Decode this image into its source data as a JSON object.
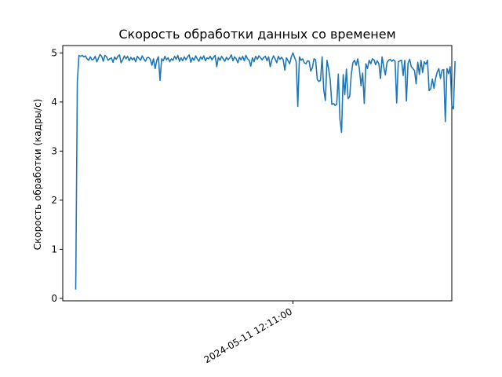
{
  "chart_data": {
    "type": "line",
    "title": "Скорость обработки данных со временем",
    "xlabel": "",
    "ylabel": "Скорость обработки (кадры/с)",
    "y_ticks": [
      "0",
      "1",
      "2",
      "3",
      "4",
      "5"
    ],
    "ylim": [
      -0.05,
      5.15
    ],
    "x_ticks": [
      {
        "label": "2024-05-11 12:11:00",
        "at_index": 134
      }
    ],
    "xlim_index": [
      -8,
      232
    ],
    "grid": false,
    "line_color": "#1f77b4",
    "series": [
      {
        "values": [
          0.18,
          4.42,
          4.95,
          4.93,
          4.95,
          4.92,
          4.94,
          4.88,
          4.85,
          4.92,
          4.86,
          4.87,
          4.93,
          4.82,
          4.89,
          4.97,
          4.93,
          4.83,
          4.95,
          4.92,
          4.85,
          4.88,
          4.9,
          4.81,
          4.92,
          4.87,
          4.93,
          4.96,
          4.8,
          4.86,
          4.94,
          4.88,
          4.93,
          4.84,
          4.91,
          4.86,
          4.9,
          4.82,
          4.93,
          4.89,
          4.85,
          4.94,
          4.88,
          4.83,
          4.9,
          4.91,
          4.87,
          4.75,
          4.88,
          4.68,
          4.85,
          4.92,
          4.44,
          4.88,
          4.84,
          4.93,
          4.86,
          4.9,
          4.82,
          4.88,
          4.85,
          4.93,
          4.87,
          4.95,
          4.83,
          4.9,
          4.84,
          4.92,
          4.86,
          4.92,
          4.96,
          4.81,
          4.9,
          4.85,
          4.94,
          4.88,
          4.83,
          4.92,
          4.87,
          4.94,
          4.84,
          4.9,
          4.88,
          4.93,
          4.86,
          4.91,
          4.95,
          4.72,
          4.91,
          4.85,
          4.93,
          4.88,
          4.83,
          4.91,
          4.86,
          4.9,
          4.96,
          4.84,
          4.92,
          4.88,
          4.8,
          4.91,
          4.86,
          4.93,
          4.84,
          4.95,
          4.88,
          4.85,
          4.73,
          4.9,
          4.82,
          4.93,
          4.87,
          4.94,
          4.9,
          4.86,
          4.91,
          4.93,
          4.84,
          4.92,
          4.72,
          4.86,
          4.94,
          4.88,
          4.8,
          4.93,
          4.87,
          4.91,
          4.86,
          4.65,
          4.9,
          4.84,
          4.78,
          4.92,
          5.0,
          4.91,
          4.82,
          3.91,
          4.92,
          4.85,
          4.88,
          4.8,
          4.78,
          4.84,
          4.83,
          4.63,
          4.7,
          4.88,
          4.86,
          4.46,
          4.42,
          4.44,
          4.92,
          4.25,
          4.03,
          4.85,
          4.68,
          4.45,
          3.95,
          3.97,
          3.93,
          3.95,
          4.57,
          3.65,
          3.38,
          4.56,
          4.15,
          4.67,
          4.07,
          4.11,
          4.57,
          4.8,
          4.85,
          4.75,
          4.88,
          4.67,
          4.33,
          4.59,
          3.97,
          4.78,
          4.68,
          4.85,
          4.78,
          4.88,
          4.86,
          4.76,
          4.84,
          4.78,
          4.48,
          4.92,
          4.72,
          4.55,
          4.8,
          4.85,
          4.87,
          4.83,
          4.86,
          4.83,
          3.98,
          4.82,
          4.84,
          4.85,
          4.54,
          4.85,
          4.02,
          4.79,
          4.87,
          4.72,
          4.68,
          4.64,
          4.37,
          4.81,
          4.56,
          4.85,
          4.6,
          4.82,
          4.77,
          4.85,
          4.23,
          4.27,
          4.47,
          4.28,
          4.48,
          4.61,
          4.68,
          4.48,
          4.65,
          4.66,
          3.6,
          4.68,
          4.58,
          4.72,
          3.92,
          3.86,
          4.83
        ]
      }
    ]
  }
}
